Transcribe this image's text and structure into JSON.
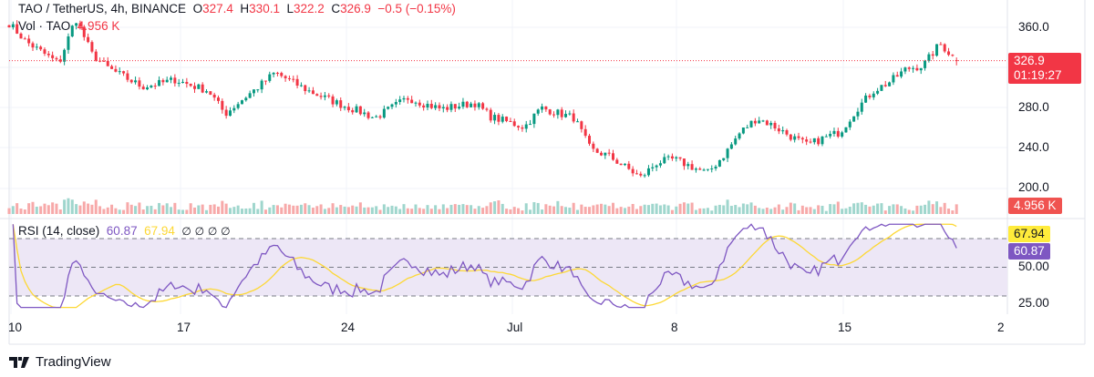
{
  "header": {
    "symbol": "TAO / TetherUS, 4h, BINANCE",
    "o_label": "O",
    "o": "327.4",
    "h_label": "H",
    "h": "330.1",
    "l_label": "L",
    "l": "322.2",
    "c_label": "C",
    "c": "326.9",
    "change": "−0.5 (−0.15%)"
  },
  "volume_legend": {
    "label": "Vol · TAO",
    "value": "4.956 K"
  },
  "rsi_legend": {
    "label": "RSI (14, close)",
    "rsi": "60.87",
    "ma": "67.94",
    "extras": [
      "∅",
      "∅",
      "∅",
      "∅"
    ]
  },
  "price_tag": {
    "price": "326.9",
    "countdown": "01:19:27"
  },
  "volume_tag": "4.956 K",
  "rsi_tags": {
    "ma": "67.94",
    "rsi": "60.87"
  },
  "brand": "TradingView",
  "colors": {
    "up": "#089981",
    "down": "#f23645",
    "rsi": "#7e57c2",
    "rsi_ma": "#fdd835",
    "rsi_band": "#ede7f6"
  },
  "chart_data": {
    "type": "candlestick",
    "price_axis": {
      "ticks": [
        "360.0",
        "280.0",
        "240.0",
        "200.0"
      ],
      "ylim": [
        180,
        372
      ]
    },
    "rsi_axis": {
      "ticks": [
        "50.00",
        "25.00"
      ],
      "bands": [
        70,
        50,
        30
      ]
    },
    "x_ticks": [
      "10",
      "17",
      "24",
      "Jul",
      "8",
      "15",
      "2"
    ],
    "approx_closes": [
      364,
      346,
      335,
      324,
      369,
      333,
      319,
      310,
      301,
      304,
      308,
      302,
      297,
      274,
      288,
      301,
      315,
      306,
      297,
      290,
      283,
      277,
      270,
      280,
      290,
      284,
      279,
      282,
      285,
      271,
      266,
      261,
      280,
      275,
      270,
      238,
      233,
      222,
      211,
      226,
      229,
      222,
      215,
      233,
      256,
      270,
      262,
      252,
      243,
      250,
      256,
      279,
      297,
      306,
      319,
      322,
      344,
      326.9
    ],
    "last": {
      "open": 327.4,
      "high": 330.1,
      "low": 322.2,
      "close": 326.9
    },
    "rsi_last": 60.87,
    "rsi_ma_last": 67.94,
    "volume_last": "4.956 K"
  }
}
